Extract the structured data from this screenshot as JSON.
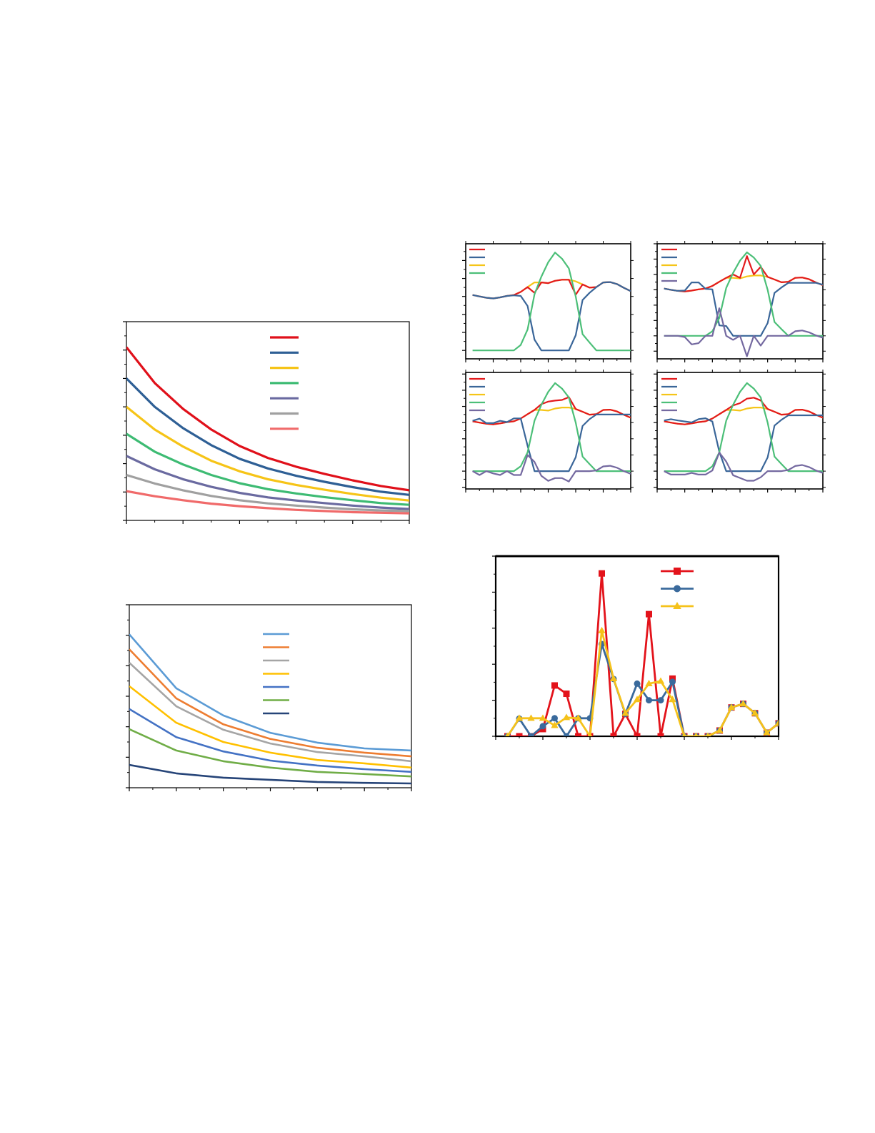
{
  "chart_data": [
    {
      "id": "decay-a",
      "type": "line",
      "x": [
        0,
        1,
        2,
        3,
        4,
        5,
        6,
        7,
        8,
        9,
        10
      ],
      "xlim": [
        0,
        10
      ],
      "ylim": [
        0,
        7
      ],
      "xtick_step": 2,
      "ytick_step": 1,
      "grid": false,
      "legend": "top-center",
      "series": [
        {
          "color": "#e0101a",
          "values": [
            6.1,
            4.84,
            3.93,
            3.2,
            2.62,
            2.2,
            1.89,
            1.64,
            1.41,
            1.21,
            1.06
          ]
        },
        {
          "color": "#2e5f95",
          "values": [
            5.0,
            4.0,
            3.25,
            2.65,
            2.17,
            1.83,
            1.57,
            1.36,
            1.17,
            1.01,
            0.9
          ]
        },
        {
          "color": "#f6c417",
          "values": [
            4.0,
            3.2,
            2.6,
            2.1,
            1.73,
            1.45,
            1.25,
            1.08,
            0.93,
            0.8,
            0.7
          ]
        },
        {
          "color": "#3dbb73",
          "values": [
            3.05,
            2.42,
            1.97,
            1.6,
            1.31,
            1.1,
            0.95,
            0.82,
            0.71,
            0.61,
            0.55
          ]
        },
        {
          "color": "#6a6aa0",
          "values": [
            2.27,
            1.8,
            1.45,
            1.18,
            0.97,
            0.81,
            0.7,
            0.61,
            0.52,
            0.45,
            0.4
          ]
        },
        {
          "color": "#a0a0a0",
          "values": [
            1.6,
            1.3,
            1.06,
            0.86,
            0.71,
            0.6,
            0.52,
            0.45,
            0.39,
            0.35,
            0.33
          ]
        },
        {
          "color": "#f06a6a",
          "values": [
            1.03,
            0.85,
            0.71,
            0.59,
            0.5,
            0.43,
            0.37,
            0.33,
            0.29,
            0.27,
            0.25
          ]
        }
      ]
    },
    {
      "id": "decay-b",
      "type": "line",
      "x": [
        0,
        1,
        2,
        3,
        4,
        5,
        6
      ],
      "xlim": [
        0,
        6
      ],
      "ylim": [
        0,
        6
      ],
      "xtick_step": 1,
      "ytick_step": 1,
      "grid": false,
      "legend": "top-center",
      "series": [
        {
          "color": "#5b9bd5",
          "values": [
            5.03,
            3.26,
            2.37,
            1.8,
            1.48,
            1.29,
            1.22
          ]
        },
        {
          "color": "#ed7d31",
          "values": [
            4.54,
            2.93,
            2.08,
            1.6,
            1.31,
            1.15,
            1.03
          ]
        },
        {
          "color": "#a5a5a5",
          "values": [
            4.1,
            2.67,
            1.9,
            1.45,
            1.17,
            1.03,
            0.87
          ]
        },
        {
          "color": "#ffc000",
          "values": [
            3.33,
            2.13,
            1.5,
            1.15,
            0.91,
            0.8,
            0.66
          ]
        },
        {
          "color": "#4472c4",
          "values": [
            2.58,
            1.66,
            1.19,
            0.89,
            0.73,
            0.61,
            0.52
          ]
        },
        {
          "color": "#70ad47",
          "values": [
            1.92,
            1.22,
            0.87,
            0.66,
            0.52,
            0.45,
            0.37
          ]
        },
        {
          "color": "#264478",
          "values": [
            0.75,
            0.47,
            0.33,
            0.26,
            0.19,
            0.16,
            0.14
          ]
        }
      ]
    },
    {
      "id": "panel-1",
      "type": "line",
      "x": [
        0,
        1,
        2,
        3,
        4,
        5,
        6,
        7,
        8,
        9,
        10,
        11,
        12,
        13,
        14,
        15,
        16,
        17,
        18,
        19,
        20,
        21,
        22,
        23
      ],
      "xlim": [
        -1,
        23
      ],
      "ylim": [
        -0.47,
        5.93
      ],
      "xtick_step": 4,
      "ytick_step": 1,
      "grid": false,
      "legend": "top-left",
      "series": [
        {
          "color": "#e31a1c",
          "values": [
            3.08,
            3.0,
            2.93,
            2.89,
            2.95,
            3.03,
            3.08,
            3.25,
            3.52,
            3.2,
            3.78,
            3.74,
            3.87,
            3.93,
            3.93,
            3.1,
            3.67,
            3.49,
            3.52,
            3.78,
            3.8,
            3.69,
            3.48,
            3.3
          ]
        },
        {
          "color": "#3a6699",
          "values": [
            3.08,
            3.0,
            2.93,
            2.89,
            2.95,
            3.03,
            3.06,
            3.03,
            2.47,
            0.6,
            0,
            0,
            0,
            0,
            0,
            0.84,
            2.8,
            3.2,
            3.52,
            3.78,
            3.8,
            3.69,
            3.48,
            3.3
          ]
        },
        {
          "color": "#f5c518",
          "values": [
            3.08,
            3.0,
            2.93,
            2.89,
            2.95,
            3.03,
            3.08,
            3.25,
            3.52,
            3.78,
            3.78,
            3.74,
            3.87,
            3.93,
            3.93,
            3.84,
            3.67,
            3.49,
            3.52,
            3.78,
            3.8,
            3.69,
            3.48,
            3.3
          ]
        },
        {
          "color": "#4cbf78",
          "values": [
            0,
            0,
            0,
            0,
            0,
            0,
            0,
            0.3,
            1.16,
            3.12,
            4.1,
            4.9,
            5.44,
            5.1,
            4.56,
            3.0,
            0.9,
            0.44,
            0,
            0,
            0,
            0,
            0,
            0
          ]
        }
      ]
    },
    {
      "id": "panel-2",
      "type": "line",
      "x": [
        0,
        1,
        2,
        3,
        4,
        5,
        6,
        7,
        8,
        9,
        10,
        11,
        12,
        13,
        14,
        15,
        16,
        17,
        18,
        19,
        20,
        21,
        22,
        23
      ],
      "xlim": [
        -1,
        23
      ],
      "ylim": [
        -1.5,
        6.0
      ],
      "xtick_step": 4,
      "ytick_step": 1,
      "grid": false,
      "legend": "top-left",
      "series": [
        {
          "color": "#e31a1c",
          "values": [
            3.08,
            3.0,
            2.93,
            2.89,
            2.95,
            3.03,
            3.08,
            3.25,
            3.52,
            3.78,
            4.0,
            3.78,
            5.2,
            4.0,
            4.5,
            3.84,
            3.67,
            3.49,
            3.52,
            3.78,
            3.8,
            3.69,
            3.48,
            3.3
          ]
        },
        {
          "color": "#3a6699",
          "values": [
            3.08,
            3.0,
            2.93,
            2.95,
            3.48,
            3.48,
            3.06,
            3.03,
            0.68,
            0.64,
            0,
            0,
            0,
            0,
            0,
            0.83,
            2.8,
            3.15,
            3.45,
            3.45,
            3.45,
            3.45,
            3.45,
            3.33
          ]
        },
        {
          "color": "#f5c518",
          "values": [
            3.08,
            3.0,
            2.93,
            2.89,
            2.95,
            3.03,
            3.08,
            3.25,
            3.52,
            3.78,
            3.78,
            3.74,
            3.87,
            3.93,
            3.93,
            3.84,
            3.67,
            3.49,
            3.52,
            3.78,
            3.8,
            3.69,
            3.48,
            3.3
          ]
        },
        {
          "color": "#4cbf78",
          "values": [
            0,
            0,
            0,
            0,
            0,
            0,
            0,
            0.3,
            1.16,
            3.12,
            4.1,
            4.9,
            5.44,
            5.1,
            4.56,
            3.0,
            0.9,
            0.44,
            0,
            0,
            0,
            0,
            0,
            0
          ]
        },
        {
          "color": "#7469a0",
          "values": [
            0,
            0,
            0,
            -0.08,
            -0.56,
            -0.48,
            0,
            0,
            1.8,
            0,
            -0.26,
            0,
            -1.33,
            0,
            -0.64,
            0,
            0,
            0,
            0,
            0.3,
            0.35,
            0.23,
            0.03,
            -0.12
          ]
        }
      ]
    },
    {
      "id": "panel-3",
      "type": "line",
      "x": [
        0,
        1,
        2,
        3,
        4,
        5,
        6,
        7,
        8,
        9,
        10,
        11,
        12,
        13,
        14,
        15,
        16,
        17,
        18,
        19,
        20,
        21,
        22,
        23
      ],
      "xlim": [
        -1,
        23
      ],
      "ylim": [
        -1.1,
        6.1
      ],
      "xtick_step": 4,
      "ytick_step": 1,
      "grid": false,
      "legend": "top-left",
      "series": [
        {
          "color": "#e31a1c",
          "values": [
            3.08,
            3.0,
            2.93,
            2.89,
            2.95,
            3.03,
            3.08,
            3.25,
            3.52,
            3.78,
            4.14,
            4.3,
            4.36,
            4.4,
            4.57,
            3.84,
            3.67,
            3.49,
            3.52,
            3.78,
            3.8,
            3.69,
            3.48,
            3.3
          ]
        },
        {
          "color": "#3a6699",
          "values": [
            3.11,
            3.24,
            2.97,
            2.97,
            3.11,
            3.03,
            3.26,
            3.26,
            1.57,
            0,
            0,
            0,
            0,
            0,
            0,
            0.86,
            2.79,
            3.21,
            3.5,
            3.5,
            3.5,
            3.5,
            3.5,
            3.5
          ]
        },
        {
          "color": "#f5c518",
          "values": [
            3.08,
            3.0,
            2.93,
            2.89,
            2.95,
            3.03,
            3.08,
            3.25,
            3.52,
            3.78,
            3.78,
            3.74,
            3.87,
            3.93,
            3.93,
            3.84,
            3.67,
            3.49,
            3.52,
            3.78,
            3.8,
            3.69,
            3.48,
            3.3
          ]
        },
        {
          "color": "#4cbf78",
          "values": [
            0,
            0,
            0,
            0,
            0,
            0,
            0,
            0.3,
            1.16,
            3.12,
            4.1,
            4.9,
            5.44,
            5.1,
            4.56,
            3.0,
            0.9,
            0.44,
            0,
            0,
            0,
            0,
            0,
            0
          ]
        },
        {
          "color": "#7469a0",
          "values": [
            0,
            -0.24,
            0,
            -0.14,
            -0.24,
            0,
            -0.24,
            -0.24,
            1.0,
            0.57,
            -0.29,
            -0.6,
            -0.43,
            -0.43,
            -0.64,
            0,
            0,
            0,
            0.04,
            0.29,
            0.33,
            0.21,
            0,
            -0.17
          ]
        }
      ]
    },
    {
      "id": "panel-4",
      "type": "line",
      "x": [
        0,
        1,
        2,
        3,
        4,
        5,
        6,
        7,
        8,
        9,
        10,
        11,
        12,
        13,
        14,
        15,
        16,
        17,
        18,
        19,
        20,
        21,
        22,
        23
      ],
      "xlim": [
        -1,
        23
      ],
      "ylim": [
        -1.1,
        6.1
      ],
      "xtick_step": 4,
      "ytick_step": 1,
      "grid": false,
      "legend": "top-left",
      "series": [
        {
          "color": "#e31a1c",
          "values": [
            3.08,
            3.0,
            2.93,
            2.89,
            2.95,
            3.03,
            3.08,
            3.25,
            3.52,
            3.78,
            4.06,
            4.2,
            4.48,
            4.54,
            4.37,
            3.84,
            3.67,
            3.49,
            3.52,
            3.78,
            3.8,
            3.69,
            3.48,
            3.3
          ]
        },
        {
          "color": "#3a6699",
          "values": [
            3.13,
            3.21,
            3.13,
            3.07,
            3.01,
            3.21,
            3.27,
            3.07,
            1.2,
            0,
            0,
            0,
            0,
            0,
            0,
            0.85,
            2.82,
            3.17,
            3.45,
            3.45,
            3.45,
            3.45,
            3.45,
            3.45
          ]
        },
        {
          "color": "#f5c518",
          "values": [
            3.08,
            3.0,
            2.93,
            2.89,
            2.95,
            3.03,
            3.08,
            3.25,
            3.52,
            3.78,
            3.78,
            3.74,
            3.87,
            3.93,
            3.93,
            3.84,
            3.67,
            3.49,
            3.52,
            3.78,
            3.8,
            3.69,
            3.48,
            3.3
          ]
        },
        {
          "color": "#4cbf78",
          "values": [
            0,
            0,
            0,
            0,
            0,
            0,
            0,
            0.3,
            1.16,
            3.12,
            4.1,
            4.9,
            5.44,
            5.1,
            4.56,
            3.0,
            0.9,
            0.44,
            0,
            0,
            0,
            0,
            0,
            0
          ]
        },
        {
          "color": "#7469a0",
          "values": [
            0,
            -0.21,
            -0.21,
            -0.21,
            -0.11,
            -0.21,
            -0.21,
            0.04,
            1.15,
            0.59,
            -0.25,
            -0.42,
            -0.59,
            -0.59,
            -0.38,
            0,
            0,
            0,
            0.07,
            0.32,
            0.38,
            0.25,
            0.04,
            -0.11
          ]
        }
      ]
    },
    {
      "id": "markers-d",
      "type": "line",
      "x": [
        1,
        2,
        3,
        4,
        5,
        6,
        7,
        8,
        9,
        10,
        11,
        12,
        13,
        14,
        15,
        16,
        17,
        18,
        19,
        20,
        21,
        22,
        23,
        24
      ],
      "xlim": [
        0,
        24
      ],
      "ylim": [
        0,
        5
      ],
      "xtick_step": 4,
      "ytick_step": 1,
      "grid": false,
      "legend": "top-right",
      "series": [
        {
          "color": "#e3131b",
          "marker": "square",
          "values": [
            0,
            0,
            0,
            0.2,
            1.41,
            1.18,
            0,
            0,
            4.52,
            0,
            0.62,
            0,
            3.39,
            0,
            1.6,
            0,
            0,
            0,
            0.16,
            0.8,
            0.9,
            0.64,
            0.1,
            0.36
          ]
        },
        {
          "color": "#3a6a9c",
          "marker": "circle",
          "values": [
            0,
            0.49,
            0,
            0.28,
            0.5,
            0,
            0.5,
            0.5,
            2.56,
            1.59,
            0.62,
            1.46,
            1.0,
            1.0,
            1.51,
            0,
            0,
            0,
            0.16,
            0.8,
            0.9,
            0.64,
            0.1,
            0.36
          ]
        },
        {
          "color": "#f5c21b",
          "marker": "triangle",
          "values": [
            0,
            0.5,
            0.5,
            0.5,
            0.3,
            0.52,
            0.5,
            0,
            2.93,
            1.6,
            0.64,
            1.02,
            1.46,
            1.53,
            1.02,
            0,
            0,
            0,
            0.16,
            0.8,
            0.9,
            0.64,
            0.1,
            0.36
          ]
        }
      ]
    }
  ]
}
